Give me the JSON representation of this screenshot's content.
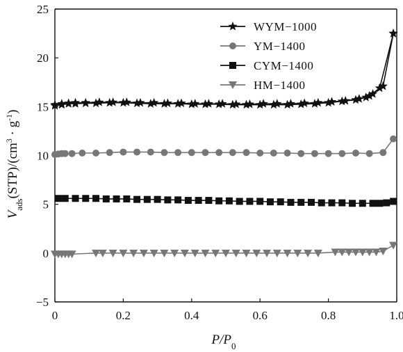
{
  "chart_data": {
    "type": "line",
    "xlabel": {
      "main": "P/P",
      "sub": "0"
    },
    "ylabel": {
      "v": "V",
      "sub": "ads",
      "rest": "(STP)/(cm",
      "sup1": "3",
      "mid": " · g",
      "sup2": "-1",
      "close": ")"
    },
    "xlim": [
      0,
      1.0
    ],
    "ylim": [
      -5,
      25
    ],
    "xticks": [
      0,
      0.2,
      0.4,
      0.6,
      0.8,
      1.0
    ],
    "xtick_labels": [
      "0",
      "0.2",
      "0.4",
      "0.6",
      "0.8",
      "1.0"
    ],
    "yticks": [
      -5,
      0,
      5,
      10,
      15,
      20,
      25
    ],
    "ytick_labels": [
      "−5",
      "0",
      "5",
      "10",
      "15",
      "20",
      "25"
    ],
    "grid": false,
    "legend_position": "top-right",
    "series": [
      {
        "name": "WYM−1000",
        "marker": "star",
        "color": "#111111",
        "x": [
          0.0,
          0.02,
          0.04,
          0.06,
          0.09,
          0.12,
          0.16,
          0.2,
          0.24,
          0.28,
          0.32,
          0.36,
          0.4,
          0.44,
          0.48,
          0.52,
          0.56,
          0.6,
          0.64,
          0.68,
          0.72,
          0.76,
          0.8,
          0.84,
          0.88,
          0.91,
          0.93,
          0.96,
          0.99
        ],
        "y": [
          15.1,
          15.2,
          15.3,
          15.3,
          15.35,
          15.35,
          15.4,
          15.4,
          15.35,
          15.3,
          15.3,
          15.3,
          15.25,
          15.25,
          15.25,
          15.2,
          15.2,
          15.2,
          15.2,
          15.2,
          15.25,
          15.3,
          15.4,
          15.55,
          15.7,
          15.95,
          16.3,
          17.1,
          22.5
        ],
        "x2": [
          0.0,
          0.02,
          0.04,
          0.06,
          0.09,
          0.13,
          0.17,
          0.21,
          0.25,
          0.29,
          0.33,
          0.37,
          0.41,
          0.45,
          0.49,
          0.53,
          0.57,
          0.61,
          0.65,
          0.69,
          0.73,
          0.77,
          0.81,
          0.85,
          0.89,
          0.92,
          0.95,
          0.99
        ],
        "y2": [
          15.2,
          15.3,
          15.35,
          15.4,
          15.4,
          15.45,
          15.45,
          15.45,
          15.4,
          15.4,
          15.35,
          15.35,
          15.3,
          15.3,
          15.3,
          15.25,
          15.25,
          15.3,
          15.3,
          15.3,
          15.35,
          15.4,
          15.5,
          15.6,
          15.8,
          16.1,
          16.9,
          22.5
        ]
      },
      {
        "name": "YM−1400",
        "marker": "circle",
        "color": "#777777",
        "x": [
          0.0,
          0.01,
          0.02,
          0.03,
          0.05,
          0.08,
          0.12,
          0.16,
          0.2,
          0.24,
          0.28,
          0.32,
          0.36,
          0.4,
          0.44,
          0.48,
          0.52,
          0.56,
          0.6,
          0.64,
          0.68,
          0.72,
          0.76,
          0.8,
          0.84,
          0.88,
          0.92,
          0.96,
          0.99
        ],
        "y": [
          10.1,
          10.15,
          10.2,
          10.2,
          10.2,
          10.25,
          10.25,
          10.3,
          10.35,
          10.35,
          10.35,
          10.3,
          10.3,
          10.3,
          10.3,
          10.3,
          10.3,
          10.3,
          10.25,
          10.25,
          10.25,
          10.2,
          10.2,
          10.2,
          10.2,
          10.25,
          10.2,
          10.3,
          11.7
        ]
      },
      {
        "name": "CYM−1400",
        "marker": "square",
        "color": "#111111",
        "x": [
          0.01,
          0.03,
          0.06,
          0.09,
          0.12,
          0.15,
          0.18,
          0.21,
          0.24,
          0.27,
          0.3,
          0.33,
          0.36,
          0.39,
          0.42,
          0.45,
          0.48,
          0.51,
          0.54,
          0.57,
          0.6,
          0.63,
          0.66,
          0.69,
          0.72,
          0.75,
          0.78,
          0.81,
          0.84,
          0.87,
          0.9,
          0.93,
          0.95,
          0.97,
          0.99
        ],
        "y": [
          5.6,
          5.6,
          5.6,
          5.6,
          5.6,
          5.55,
          5.55,
          5.55,
          5.5,
          5.5,
          5.5,
          5.45,
          5.45,
          5.4,
          5.4,
          5.4,
          5.35,
          5.35,
          5.3,
          5.3,
          5.3,
          5.25,
          5.25,
          5.2,
          5.2,
          5.2,
          5.15,
          5.15,
          5.15,
          5.1,
          5.1,
          5.1,
          5.1,
          5.15,
          5.3
        ]
      },
      {
        "name": "HM−1400",
        "marker": "triangle-down",
        "color": "#777777",
        "x": [
          0.0,
          0.01,
          0.02,
          0.03,
          0.04,
          0.05,
          0.12,
          0.14,
          0.17,
          0.2,
          0.23,
          0.26,
          0.29,
          0.32,
          0.35,
          0.38,
          0.41,
          0.44,
          0.47,
          0.5,
          0.53,
          0.56,
          0.59,
          0.62,
          0.65,
          0.68,
          0.71,
          0.74,
          0.77,
          0.82,
          0.84,
          0.86,
          0.88,
          0.9,
          0.92,
          0.94,
          0.96,
          0.99
        ],
        "y": [
          -0.1,
          -0.1,
          -0.1,
          -0.1,
          -0.1,
          -0.1,
          0.0,
          0.0,
          0.0,
          0.0,
          0.0,
          0.0,
          0.0,
          0.0,
          0.0,
          0.0,
          0.0,
          0.0,
          0.0,
          0.0,
          0.0,
          0.0,
          0.0,
          0.0,
          0.0,
          0.0,
          0.0,
          0.0,
          0.0,
          0.1,
          0.1,
          0.1,
          0.1,
          0.1,
          0.1,
          0.1,
          0.2,
          0.8
        ]
      }
    ]
  }
}
